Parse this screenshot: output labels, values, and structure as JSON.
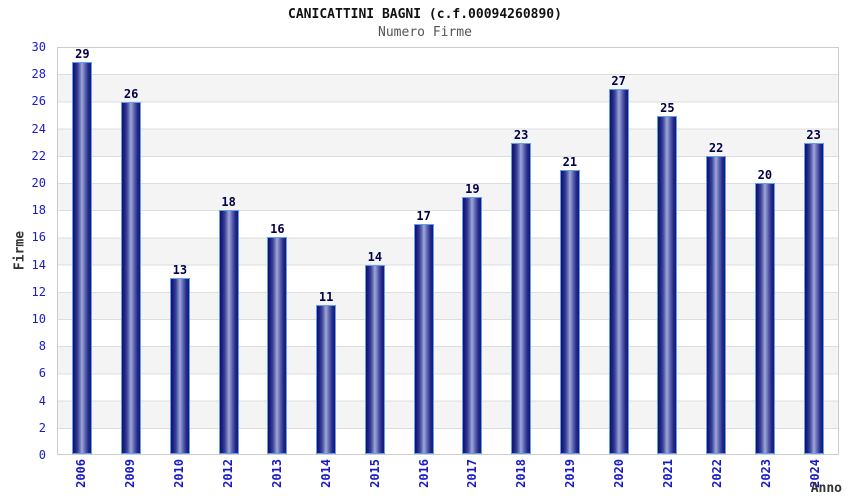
{
  "header": {
    "title": "CANICATTINI BAGNI (c.f.00094260890)",
    "subtitle": "Numero Firme"
  },
  "chart_data": {
    "type": "bar",
    "title": "CANICATTINI BAGNI (c.f.00094260890)",
    "subtitle": "Numero Firme",
    "categories": [
      "2006",
      "2009",
      "2010",
      "2012",
      "2013",
      "2014",
      "2015",
      "2016",
      "2017",
      "2018",
      "2019",
      "2020",
      "2021",
      "2022",
      "2023",
      "2024"
    ],
    "values": [
      29,
      26,
      13,
      18,
      16,
      11,
      14,
      17,
      19,
      23,
      21,
      27,
      25,
      22,
      20,
      23
    ],
    "xlabel": "Anno",
    "ylabel": "Firme",
    "ylim": [
      0,
      30
    ],
    "ytick_step": 2,
    "yticks": [
      0,
      2,
      4,
      6,
      8,
      10,
      12,
      14,
      16,
      18,
      20,
      22,
      24,
      26,
      28,
      30
    ],
    "grid": true,
    "legend": "none",
    "colors": {
      "bar_dark": "#10136b",
      "bar_light": "#9ba4d6",
      "bar_border": "#62a0ee",
      "axis_tick_label": "#1a1ac8",
      "value_label": "#000044",
      "band_alt": "#f4f4f4",
      "gridline": "#dddddd",
      "subtitle_text": "#555555",
      "axis_title_text": "#333333"
    }
  }
}
